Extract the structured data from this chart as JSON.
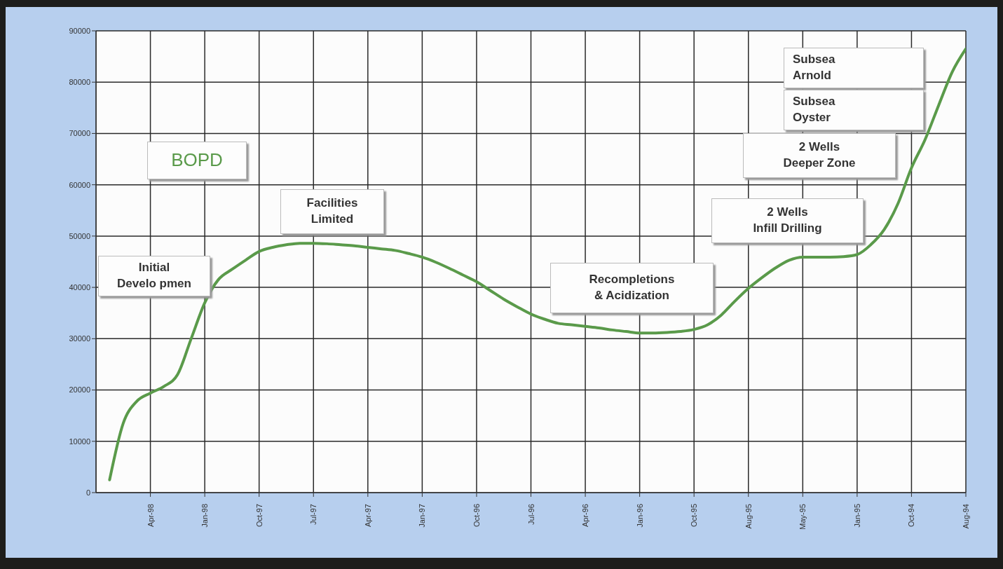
{
  "chart_data": {
    "type": "line",
    "ylabel": "BOPD",
    "categories": [
      null,
      null,
      null,
      null,
      "Apr-98",
      null,
      null,
      null,
      "Jan-98",
      null,
      null,
      null,
      "Oct-97",
      null,
      null,
      null,
      "Jul-97",
      null,
      null,
      null,
      "Apr-97",
      null,
      null,
      null,
      "Jan-97",
      null,
      null,
      null,
      "Oct-96",
      null,
      null,
      null,
      "Jul-96",
      null,
      null,
      null,
      "Apr-96",
      null,
      null,
      null,
      "Jan-96",
      null,
      null,
      null,
      "Oct-95",
      null,
      null,
      null,
      "Aug-95",
      null,
      null,
      null,
      "May-95",
      null,
      null,
      null,
      "Jan-95",
      null,
      null,
      null,
      "Oct-94",
      null,
      null,
      null,
      "Aug-94"
    ],
    "series": [
      {
        "color": "#5a9a4a",
        "values": [
          null,
          2500,
          13500,
          17800,
          19400,
          20700,
          23000,
          30000,
          37000,
          41500,
          43500,
          45300,
          47000,
          47800,
          48300,
          48600,
          48600,
          48500,
          48300,
          48100,
          47800,
          47500,
          47200,
          46600,
          45900,
          44900,
          43700,
          42400,
          41100,
          39400,
          37700,
          36200,
          34800,
          33800,
          33000,
          32700,
          32400,
          32100,
          31700,
          31400,
          31100,
          31100,
          31200,
          31400,
          31800,
          32700,
          34600,
          37300,
          39800,
          41900,
          43800,
          45300,
          45900,
          45900,
          45900,
          46000,
          46400,
          48300,
          51300,
          56300,
          63300,
          68800,
          75500,
          82000,
          86500
        ]
      }
    ],
    "ylim": [
      0,
      90000
    ],
    "yticks": [
      0,
      10000,
      20000,
      30000,
      40000,
      50000,
      60000,
      70000,
      80000,
      90000
    ],
    "grid": true,
    "legend": false,
    "marker": "none",
    "line_style": "solid",
    "annotations": [
      "Initial\nDevelo pmen",
      "Facilities\nLimited",
      "Recompletions\n& Acidization",
      "2 Wells\nInfill Drilling",
      "2 Wells\nDeeper Zone",
      "Subsea\nArnold",
      "Subsea\nOyster"
    ]
  }
}
